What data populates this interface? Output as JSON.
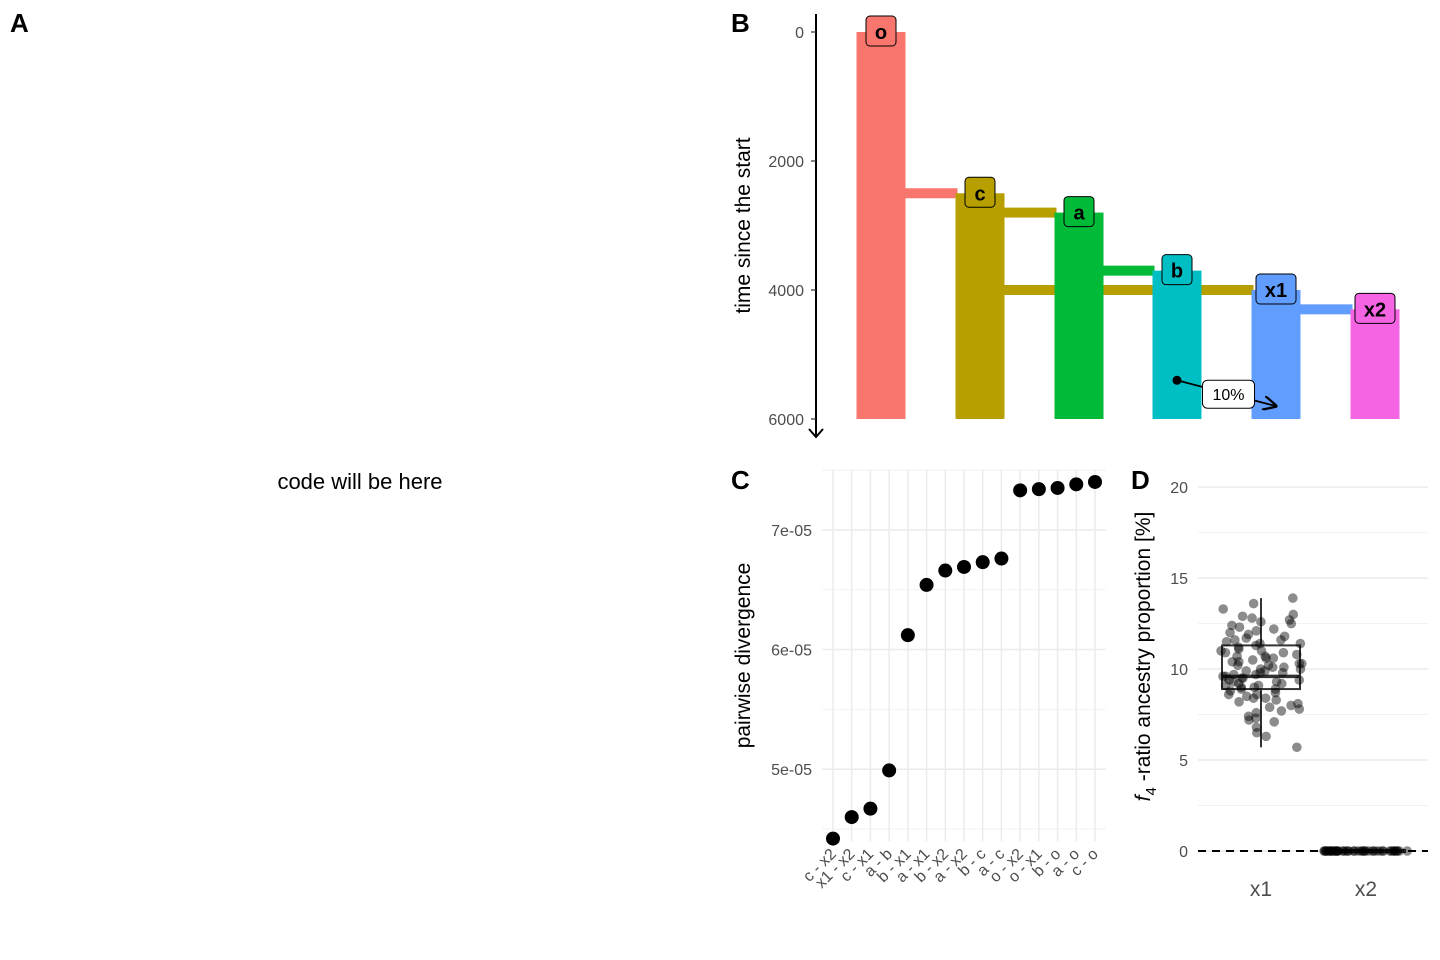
{
  "panel_a": {
    "letter": "A",
    "placeholder": "code will be here"
  },
  "chart_data": [
    {
      "panel": "B",
      "type": "bar",
      "ylabel": "time since the start",
      "ylim": [
        0,
        6000
      ],
      "y_reversed": true,
      "y_ticks": [
        "0",
        "2000",
        "4000",
        "6000"
      ],
      "populations": [
        {
          "name": "o",
          "start": 0,
          "end": 6000,
          "color": "#F8766D"
        },
        {
          "name": "c",
          "start": 2500,
          "end": 6000,
          "color": "#B79F00"
        },
        {
          "name": "a",
          "start": 2800,
          "end": 6000,
          "color": "#00BA38"
        },
        {
          "name": "b",
          "start": 3700,
          "end": 6000,
          "color": "#00BFC4"
        },
        {
          "name": "x1",
          "start": 4000,
          "end": 6000,
          "color": "#619CFF"
        },
        {
          "name": "x2",
          "start": 4300,
          "end": 6000,
          "color": "#F564E3"
        }
      ],
      "splits": [
        {
          "from": "o",
          "to": "c",
          "time": 2500
        },
        {
          "from": "c",
          "to": "a",
          "time": 2800
        },
        {
          "from": "a",
          "to": "b",
          "time": 3700
        },
        {
          "from": "c",
          "to": "x1",
          "time": 4000
        },
        {
          "from": "x1",
          "to": "x2",
          "time": 4300
        }
      ],
      "gene_flow": {
        "from": "b",
        "to": "x1",
        "start": 5400,
        "end": 5800,
        "label": "10%"
      }
    },
    {
      "panel": "C",
      "type": "scatter",
      "ylabel": "pairwise divergence",
      "ylim": [
        4.4e-05,
        7.5e-05
      ],
      "y_ticks": [
        {
          "value": 5e-05,
          "label": "5e-05"
        },
        {
          "value": 6e-05,
          "label": "6e-05"
        },
        {
          "value": 7e-05,
          "label": "7e-05"
        }
      ],
      "categories": [
        "c - x2",
        "x1 - x2",
        "c - x1",
        "a - b",
        "b - x1",
        "a - x1",
        "b - x2",
        "a - x2",
        "b - c",
        "a - c",
        "o - x2",
        "o - x1",
        "b - o",
        "a - o",
        "c - o"
      ],
      "values": [
        4.42e-05,
        4.6e-05,
        4.67e-05,
        4.99e-05,
        6.12e-05,
        6.54e-05,
        6.66e-05,
        6.69e-05,
        6.73e-05,
        6.76e-05,
        7.33e-05,
        7.34e-05,
        7.35e-05,
        7.38e-05,
        7.4e-05
      ]
    },
    {
      "panel": "D",
      "type": "box",
      "ylabel": "f4 -ratio ancestry proportion [%]",
      "ylabel_f": "f",
      "ylabel_sub": "4",
      "ylabel_rest": " -ratio ancestry proportion [%]",
      "ylim": [
        0,
        20
      ],
      "y_ticks": [
        "0",
        "5",
        "10",
        "15",
        "20"
      ],
      "categories": [
        "x1",
        "x2"
      ],
      "reference_line": 0,
      "boxes": [
        {
          "name": "x1",
          "min": 5.7,
          "q1": 8.9,
          "median": 9.6,
          "q3": 11.3,
          "max": 13.9
        },
        {
          "name": "x2",
          "min": 0,
          "q1": 0,
          "median": 0,
          "q3": 0,
          "max": 0
        }
      ],
      "points_x1": [
        9.8,
        10.6,
        8.6,
        12.3,
        7.6,
        11.0,
        9.1,
        13.9,
        10.2,
        8.4,
        9.5,
        11.8,
        7.1,
        10.9,
        12.6,
        9.2,
        8.9,
        10.4,
        6.3,
        11.4,
        9.7,
        13.3,
        8.1,
        10.0,
        9.4,
        12.1,
        7.8,
        11.6,
        9.0,
        10.7,
        8.7,
        12.9,
        9.3,
        10.3,
        6.8,
        11.2,
        9.9,
        8.5,
        12.4,
        10.1,
        7.4,
        11.9,
        9.6,
        10.8,
        8.2,
        13.0,
        9.1,
        11.1,
        7.9,
        10.5,
        9.8,
        12.2,
        8.8,
        10.2,
        6.5,
        11.5,
        9.6,
        13.6,
        8.3,
        10.6,
        9.4,
        11.7,
        7.3,
        10.0,
        9.7,
        12.7,
        8.6,
        11.3,
        9.0,
        10.4,
        7.7,
        12.0,
        9.5,
        10.9,
        8.0,
        11.4,
        5.7,
        12.5,
        9.2,
        10.1,
        8.4,
        11.0,
        9.9,
        7.2,
        10.7,
        12.8,
        9.3,
        11.6,
        8.9,
        10.3
      ],
      "points_x2": [
        0,
        0,
        0,
        0,
        0,
        0,
        0,
        0,
        0,
        0,
        0,
        0,
        0,
        0,
        0,
        0,
        0,
        0,
        0,
        0,
        0,
        0,
        0,
        0,
        0,
        0,
        0,
        0,
        0,
        0,
        0,
        0,
        0,
        0,
        0,
        0,
        0,
        0,
        0,
        0,
        0,
        0,
        0,
        0,
        0,
        0
      ]
    }
  ]
}
